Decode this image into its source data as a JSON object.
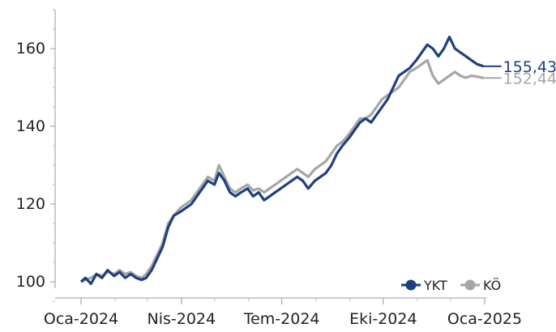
{
  "chart_data": {
    "type": "line",
    "title": "",
    "xlabel": "",
    "ylabel": "",
    "x_ticks": [
      "Oca-2024",
      "Nis-2024",
      "Tem-2024",
      "Eki-2024",
      "Oca-2025"
    ],
    "x_range": [
      "2024-01-01",
      "2025-01-01"
    ],
    "ylim": [
      95,
      170
    ],
    "y_ticks": [
      100,
      120,
      140,
      160
    ],
    "grid": false,
    "legend_position": "bottom-right",
    "series": [
      {
        "name": "YKT",
        "color": "#1f3f80",
        "end_label": "155,43",
        "points": [
          [
            "2024-01-01",
            100
          ],
          [
            "2024-01-05",
            101
          ],
          [
            "2024-01-10",
            99.5
          ],
          [
            "2024-01-15",
            102
          ],
          [
            "2024-01-20",
            101
          ],
          [
            "2024-01-25",
            103
          ],
          [
            "2024-01-31",
            101.5
          ],
          [
            "2024-02-05",
            102.5
          ],
          [
            "2024-02-10",
            101
          ],
          [
            "2024-02-15",
            102
          ],
          [
            "2024-02-20",
            101
          ],
          [
            "2024-02-25",
            100.5
          ],
          [
            "2024-02-29",
            101
          ],
          [
            "2024-03-05",
            103
          ],
          [
            "2024-03-10",
            106
          ],
          [
            "2024-03-15",
            109
          ],
          [
            "2024-03-20",
            114
          ],
          [
            "2024-03-25",
            117
          ],
          [
            "2024-03-31",
            118
          ],
          [
            "2024-04-05",
            119
          ],
          [
            "2024-04-10",
            120
          ],
          [
            "2024-04-15",
            122
          ],
          [
            "2024-04-20",
            124
          ],
          [
            "2024-04-25",
            126
          ],
          [
            "2024-05-01",
            125
          ],
          [
            "2024-05-05",
            128
          ],
          [
            "2024-05-10",
            126
          ],
          [
            "2024-05-15",
            123
          ],
          [
            "2024-05-20",
            122
          ],
          [
            "2024-05-25",
            123
          ],
          [
            "2024-05-31",
            124
          ],
          [
            "2024-06-05",
            122
          ],
          [
            "2024-06-10",
            123
          ],
          [
            "2024-06-15",
            121
          ],
          [
            "2024-06-20",
            122
          ],
          [
            "2024-06-25",
            123
          ],
          [
            "2024-06-30",
            124
          ],
          [
            "2024-07-05",
            125
          ],
          [
            "2024-07-10",
            126
          ],
          [
            "2024-07-15",
            127
          ],
          [
            "2024-07-20",
            126
          ],
          [
            "2024-07-25",
            124
          ],
          [
            "2024-07-31",
            126
          ],
          [
            "2024-08-05",
            127
          ],
          [
            "2024-08-10",
            128
          ],
          [
            "2024-08-15",
            130
          ],
          [
            "2024-08-20",
            133
          ],
          [
            "2024-08-25",
            135
          ],
          [
            "2024-08-31",
            137
          ],
          [
            "2024-09-05",
            139
          ],
          [
            "2024-09-10",
            141
          ],
          [
            "2024-09-15",
            142
          ],
          [
            "2024-09-20",
            141
          ],
          [
            "2024-09-25",
            143
          ],
          [
            "2024-09-30",
            145
          ],
          [
            "2024-10-05",
            147
          ],
          [
            "2024-10-10",
            150
          ],
          [
            "2024-10-15",
            153
          ],
          [
            "2024-10-20",
            154
          ],
          [
            "2024-10-25",
            155
          ],
          [
            "2024-10-31",
            157
          ],
          [
            "2024-11-05",
            159
          ],
          [
            "2024-11-10",
            161
          ],
          [
            "2024-11-15",
            160
          ],
          [
            "2024-11-20",
            158
          ],
          [
            "2024-11-25",
            160
          ],
          [
            "2024-11-30",
            163
          ],
          [
            "2024-12-05",
            160
          ],
          [
            "2024-12-10",
            159
          ],
          [
            "2024-12-15",
            158
          ],
          [
            "2024-12-20",
            157
          ],
          [
            "2024-12-25",
            156
          ],
          [
            "2024-12-31",
            155.43
          ]
        ]
      },
      {
        "name": "KÖ",
        "color": "#a6a6a6",
        "end_label": "152,44",
        "points": [
          [
            "2024-01-01",
            100
          ],
          [
            "2024-01-05",
            100.5
          ],
          [
            "2024-01-10",
            101
          ],
          [
            "2024-01-15",
            102
          ],
          [
            "2024-01-20",
            101.5
          ],
          [
            "2024-01-25",
            102.5
          ],
          [
            "2024-01-31",
            102
          ],
          [
            "2024-02-05",
            103
          ],
          [
            "2024-02-10",
            102
          ],
          [
            "2024-02-15",
            102.5
          ],
          [
            "2024-02-20",
            101.5
          ],
          [
            "2024-02-25",
            101
          ],
          [
            "2024-02-29",
            102
          ],
          [
            "2024-03-05",
            104
          ],
          [
            "2024-03-10",
            107
          ],
          [
            "2024-03-15",
            110
          ],
          [
            "2024-03-20",
            115
          ],
          [
            "2024-03-25",
            117
          ],
          [
            "2024-03-31",
            119
          ],
          [
            "2024-04-05",
            120
          ],
          [
            "2024-04-10",
            121
          ],
          [
            "2024-04-15",
            123
          ],
          [
            "2024-04-20",
            125
          ],
          [
            "2024-04-25",
            127
          ],
          [
            "2024-05-01",
            126
          ],
          [
            "2024-05-05",
            130
          ],
          [
            "2024-05-10",
            127
          ],
          [
            "2024-05-15",
            124
          ],
          [
            "2024-05-20",
            123
          ],
          [
            "2024-05-25",
            124
          ],
          [
            "2024-05-31",
            125
          ],
          [
            "2024-06-05",
            123.5
          ],
          [
            "2024-06-10",
            124
          ],
          [
            "2024-06-15",
            123
          ],
          [
            "2024-06-20",
            124
          ],
          [
            "2024-06-25",
            125
          ],
          [
            "2024-06-30",
            126
          ],
          [
            "2024-07-05",
            127
          ],
          [
            "2024-07-10",
            128
          ],
          [
            "2024-07-15",
            129
          ],
          [
            "2024-07-20",
            128
          ],
          [
            "2024-07-25",
            127
          ],
          [
            "2024-07-31",
            129
          ],
          [
            "2024-08-05",
            130
          ],
          [
            "2024-08-10",
            131
          ],
          [
            "2024-08-15",
            133
          ],
          [
            "2024-08-20",
            135
          ],
          [
            "2024-08-25",
            136
          ],
          [
            "2024-08-31",
            138
          ],
          [
            "2024-09-05",
            140
          ],
          [
            "2024-09-10",
            142
          ],
          [
            "2024-09-15",
            142
          ],
          [
            "2024-09-20",
            143
          ],
          [
            "2024-09-25",
            145
          ],
          [
            "2024-09-30",
            147
          ],
          [
            "2024-10-05",
            148
          ],
          [
            "2024-10-10",
            149
          ],
          [
            "2024-10-15",
            150
          ],
          [
            "2024-10-20",
            152
          ],
          [
            "2024-10-25",
            154
          ],
          [
            "2024-10-31",
            155
          ],
          [
            "2024-11-05",
            156
          ],
          [
            "2024-11-10",
            157
          ],
          [
            "2024-11-15",
            153
          ],
          [
            "2024-11-20",
            151
          ],
          [
            "2024-11-25",
            152
          ],
          [
            "2024-11-30",
            153
          ],
          [
            "2024-12-05",
            154
          ],
          [
            "2024-12-10",
            153
          ],
          [
            "2024-12-15",
            152.5
          ],
          [
            "2024-12-20",
            153
          ],
          [
            "2024-12-25",
            152.8
          ],
          [
            "2024-12-31",
            152.44
          ]
        ]
      }
    ]
  }
}
